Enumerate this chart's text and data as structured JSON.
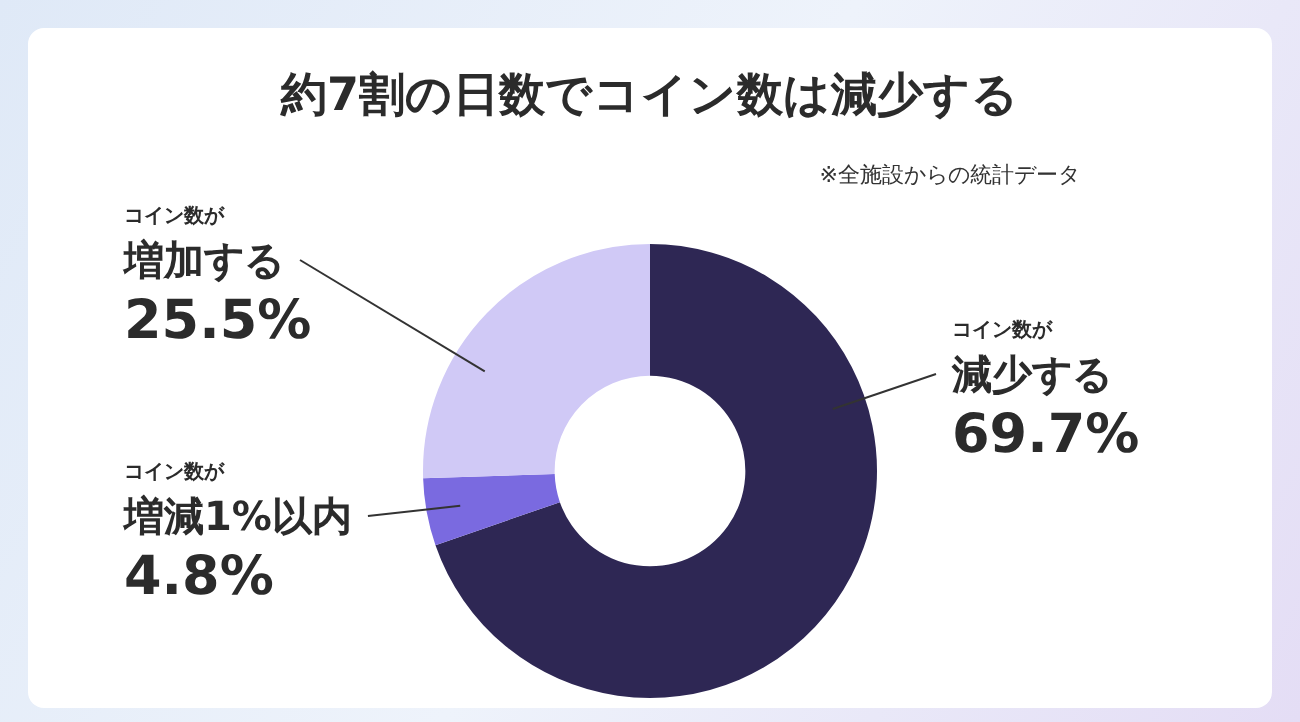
{
  "chart_data": {
    "type": "donut",
    "title": "約7割の日数でコイン数は減少する",
    "subtitle": "※全施設からの統計データ",
    "categories": [
      "コイン数が減少する",
      "コイン数が増減1%以内",
      "コイン数が増加する"
    ],
    "values": [
      69.7,
      4.8,
      25.5
    ],
    "colors": [
      "#2e2754",
      "#7a6ae0",
      "#d0c9f6"
    ],
    "value_labels": [
      "69.7%",
      "4.8%",
      "25.5%"
    ],
    "legend": false
  }
}
